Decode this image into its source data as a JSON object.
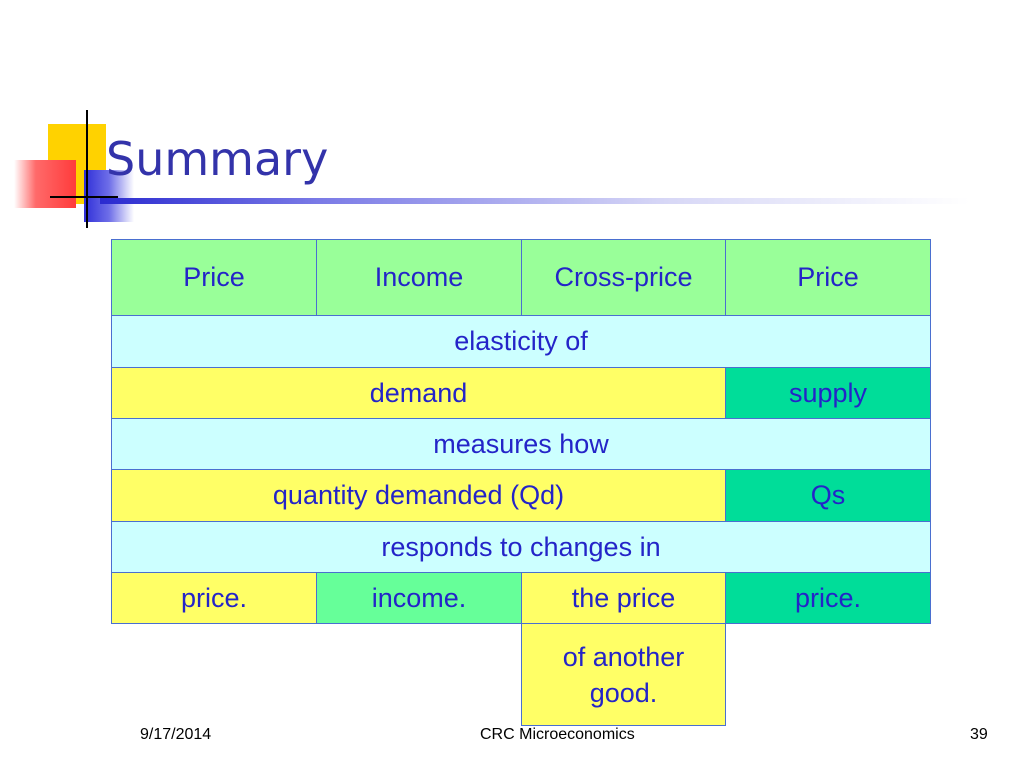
{
  "slide": {
    "title": "Summary"
  },
  "table": {
    "row1": [
      "Price",
      "Income",
      "Cross-price",
      "Price"
    ],
    "row2": "elasticity of",
    "row3": {
      "demand": "demand",
      "supply": "supply"
    },
    "row4": "measures how",
    "row5": {
      "demand": "quantity demanded (Qd)",
      "supply": "Qs"
    },
    "row6": "responds to changes in",
    "row7": [
      "price.",
      "income.",
      "the price",
      "price."
    ],
    "row8": "of another good."
  },
  "footer": {
    "date": "9/17/2014",
    "center": "CRC Microeconomics",
    "page": "39"
  },
  "colors": {
    "light_green": "#99ff99",
    "medium_green": "#66ff99",
    "teal": "#00dd99",
    "cyan": "#ccffff",
    "yellow": "#ffff66",
    "text_blue": "#2424c8",
    "title_blue": "#3333aa"
  }
}
